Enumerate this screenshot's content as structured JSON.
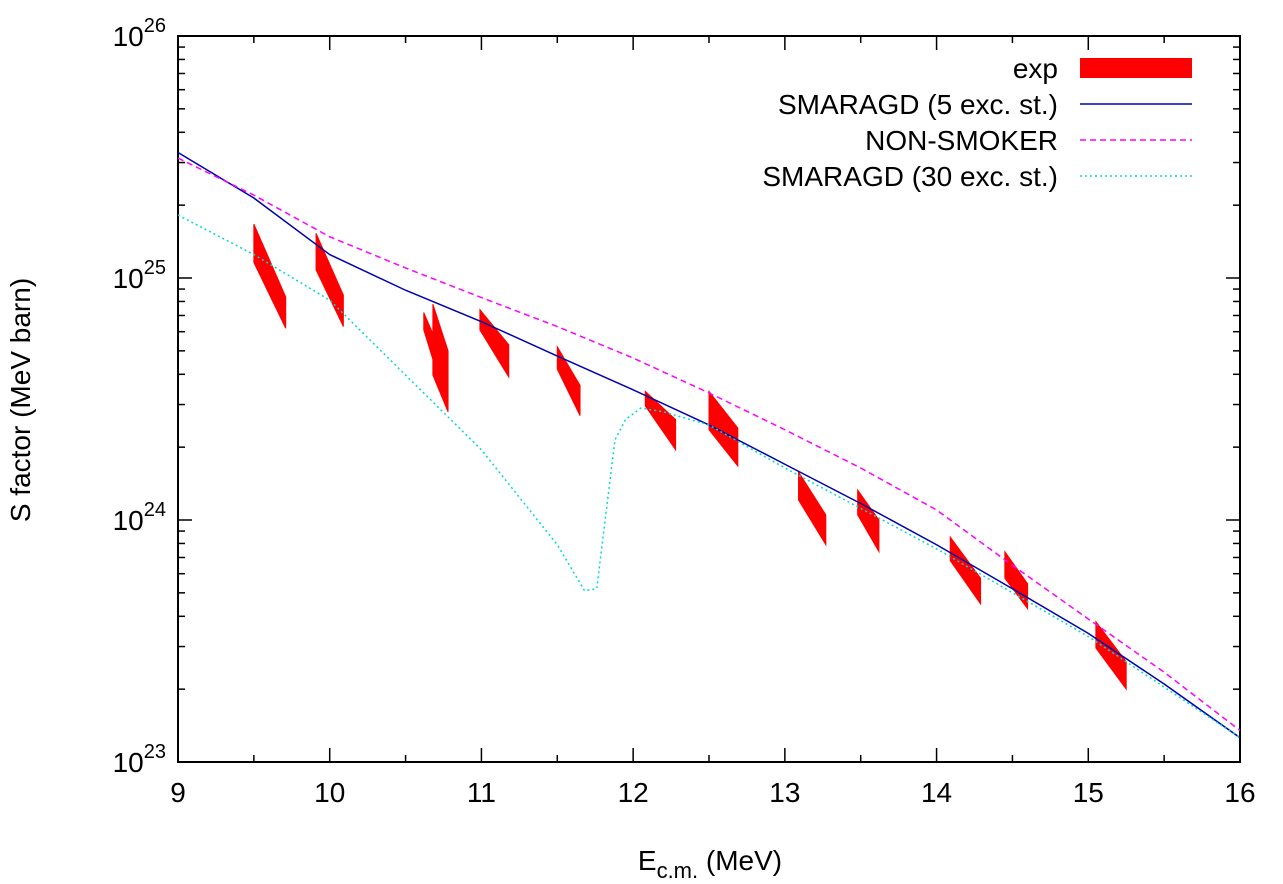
{
  "chart_data": {
    "type": "line",
    "xlabel": [
      "E",
      "c.m.",
      " (MeV)"
    ],
    "ylabel": "S factor (MeV barn)",
    "xlim": [
      9,
      16
    ],
    "ylim": [
      1e+23,
      1e+26
    ],
    "log_y": true,
    "grid": false,
    "legend": "top-right",
    "xticks": [
      9,
      10,
      11,
      12,
      13,
      14,
      15,
      16
    ],
    "xminorticks": [
      9.5,
      10.5,
      11.5,
      12.5,
      13.5,
      14.5,
      15.5
    ],
    "yticks": [
      {
        "value": 1e+23,
        "label": {
          "base": "10",
          "exponent": "23"
        }
      },
      {
        "value": 1e+24,
        "label": {
          "base": "10",
          "exponent": "24"
        }
      },
      {
        "value": 1e+25,
        "label": {
          "base": "10",
          "exponent": "25"
        }
      },
      {
        "value": 1e+26,
        "label": {
          "base": "10",
          "exponent": "26"
        }
      }
    ],
    "yminorticks": [
      2e+23,
      3e+23,
      4e+23,
      5e+23,
      6e+23,
      7e+23,
      8e+23,
      9e+23,
      2e+24,
      3e+24,
      4e+24,
      5e+24,
      6e+24,
      7e+24,
      8e+24,
      9e+24,
      2e+25,
      3e+25,
      4e+25,
      5e+25,
      6e+25,
      7e+25,
      8e+25,
      9e+25
    ],
    "series": [
      {
        "name": "exp",
        "color": "#ff0000",
        "style": "band",
        "bands": [
          {
            "x": [
              9.5,
              9.71
            ],
            "top": [
              1.67e+25,
              8.35e+24
            ],
            "bottom": [
              1.16e+25,
              6.2e+24
            ]
          },
          {
            "x": [
              9.91,
              10.09
            ],
            "top": [
              1.53e+25,
              8.5e+24
            ],
            "bottom": [
              1.08e+25,
              6.3e+24
            ]
          },
          {
            "x": [
              10.62,
              10.7
            ],
            "top": [
              7.2e+24,
              5.5e+24
            ],
            "bottom": [
              6.1e+24,
              4.2e+24
            ]
          },
          {
            "x": [
              10.68,
              10.78
            ],
            "top": [
              7.8e+24,
              5e+24
            ],
            "bottom": [
              3.97e+24,
              2.8e+24
            ]
          },
          {
            "x": [
              10.99,
              11.18
            ],
            "top": [
              7.4e+24,
              5.3e+24
            ],
            "bottom": [
              6.1e+24,
              3.9e+24
            ]
          },
          {
            "x": [
              11.5,
              11.65
            ],
            "top": [
              5.2e+24,
              3.6e+24
            ],
            "bottom": [
              4.2e+24,
              2.7e+24
            ]
          },
          {
            "x": [
              12.08,
              12.28
            ],
            "top": [
              3.4e+24,
              2.6e+24
            ],
            "bottom": [
              2.96e+24,
              1.95e+24
            ]
          },
          {
            "x": [
              12.5,
              12.69
            ],
            "top": [
              3.4e+24,
              2.4e+24
            ],
            "bottom": [
              2.36e+24,
              1.67e+24
            ]
          },
          {
            "x": [
              13.09,
              13.27
            ],
            "top": [
              1.58e+24,
              1.05e+24
            ],
            "bottom": [
              1.21e+24,
              7.9e+23
            ]
          },
          {
            "x": [
              13.48,
              13.62
            ],
            "top": [
              1.33e+24,
              1e+24
            ],
            "bottom": [
              1.05e+24,
              7.4e+23
            ]
          },
          {
            "x": [
              14.09,
              14.29
            ],
            "top": [
              8.5e+23,
              5.75e+23
            ],
            "bottom": [
              6.8e+23,
              4.5e+23
            ]
          },
          {
            "x": [
              14.45,
              14.6
            ],
            "top": [
              7.4e+23,
              5.45e+23
            ],
            "bottom": [
              5.75e+23,
              4.3e+23
            ]
          },
          {
            "x": [
              15.05,
              15.25
            ],
            "top": [
              3.8e+23,
              2.6e+23
            ],
            "bottom": [
              2.96e+23,
              2e+23
            ]
          }
        ]
      },
      {
        "name": "SMARAGD (5 exc. st.)",
        "color": "#0000b0",
        "style": "solid",
        "x": [
          9,
          9.5,
          10,
          10.5,
          11,
          11.5,
          12,
          12.5,
          13,
          13.5,
          14,
          14.5,
          15,
          15.5,
          16
        ],
        "values": [
          3.3e+25,
          2.14e+25,
          1.25e+25,
          8.9e+24,
          6.6e+24,
          4.76e+24,
          3.45e+24,
          2.47e+24,
          1.7e+24,
          1.17e+24,
          7.9e+23,
          5.2e+23,
          3.4e+23,
          2.1e+23,
          1.26e+23
        ]
      },
      {
        "name": "NON-SMOKER",
        "color": "#ff00ff",
        "style": "dashed",
        "x": [
          9,
          9.5,
          10,
          10.5,
          11,
          11.5,
          12,
          12.5,
          13,
          13.5,
          14,
          14.5,
          15,
          15.5,
          16
        ],
        "values": [
          3.13e+25,
          2.2e+25,
          1.48e+25,
          1.1e+25,
          8.3e+24,
          6.3e+24,
          4.67e+24,
          3.35e+24,
          2.36e+24,
          1.64e+24,
          1.1e+24,
          6.5e+23,
          3.9e+23,
          2.35e+23,
          1.35e+23
        ]
      },
      {
        "name": "SMARAGD (30 exc. st.)",
        "color": "#00d8d8",
        "style": "dotted",
        "x": [
          9,
          9.5,
          10,
          10.5,
          11,
          11.5,
          11.68,
          11.76,
          11.88,
          11.95,
          12.05,
          12.2,
          12.5,
          13,
          14,
          15,
          16
        ],
        "values": [
          1.82e+25,
          1.25e+25,
          8.1e+24,
          3.97e+24,
          1.95e+24,
          7.9e+23,
          5.1e+23,
          5.2e+23,
          2.14e+24,
          2.6e+24,
          2.9e+24,
          2.8e+24,
          2.47e+24,
          1.64e+24,
          7.6e+23,
          3.3e+23,
          1.26e+23
        ]
      }
    ]
  }
}
